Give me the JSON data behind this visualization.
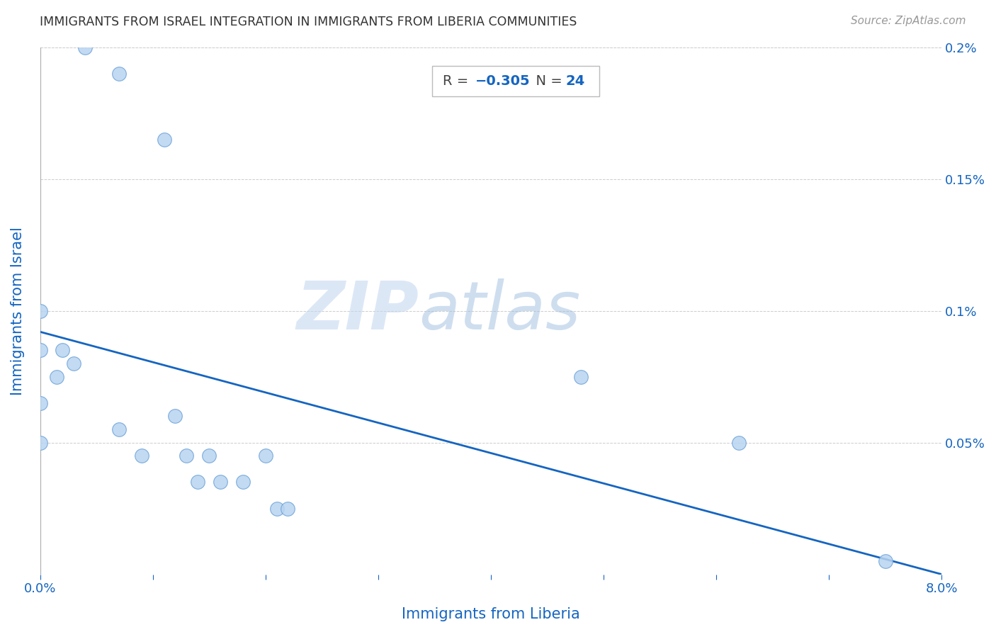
{
  "title": "IMMIGRANTS FROM ISRAEL INTEGRATION IN IMMIGRANTS FROM LIBERIA COMMUNITIES",
  "source": "Source: ZipAtlas.com",
  "xlabel": "Immigrants from Liberia",
  "ylabel": "Immigrants from Israel",
  "R": -0.305,
  "N": 24,
  "xlim": [
    0.0,
    0.08
  ],
  "ylim": [
    0.0,
    0.002
  ],
  "xticks": [
    0.0,
    0.01,
    0.02,
    0.03,
    0.04,
    0.05,
    0.06,
    0.07,
    0.08
  ],
  "xticklabels": [
    "0.0%",
    "",
    "",
    "",
    "",
    "",
    "",
    "",
    "8.0%"
  ],
  "yticks": [
    0.0,
    0.0005,
    0.001,
    0.0015,
    0.002
  ],
  "ylabels_right": [
    "",
    "0.05%",
    "0.1%",
    "0.15%",
    "0.2%"
  ],
  "scatter_color": "#b8d4f0",
  "scatter_edge_color": "#6aa0d8",
  "line_color": "#1565c0",
  "watermark_zip": "ZIP",
  "watermark_atlas": "atlas",
  "scatter_x": [
    0.004,
    0.007,
    0.011,
    0.0,
    0.002,
    0.003,
    0.0015,
    0.0,
    0.0,
    0.0,
    0.007,
    0.009,
    0.012,
    0.013,
    0.014,
    0.015,
    0.016,
    0.018,
    0.02,
    0.021,
    0.022,
    0.048,
    0.062,
    0.075
  ],
  "scatter_y": [
    0.002,
    0.0019,
    0.00165,
    0.001,
    0.00085,
    0.0008,
    0.00075,
    0.00065,
    0.0005,
    0.00085,
    0.00055,
    0.00045,
    0.0006,
    0.00045,
    0.00035,
    0.00045,
    0.00035,
    0.00035,
    0.00045,
    0.00025,
    0.00025,
    0.00075,
    0.0005,
    5e-05
  ],
  "annotation_box_color": "#ffffff",
  "annotation_border_color": "#bbbbbb",
  "R_label_color": "#444444",
  "R_value_color": "#1565c0",
  "N_label_color": "#444444",
  "N_value_color": "#1565c0",
  "label_color": "#1565c0",
  "tick_color": "#1565c0",
  "title_color": "#333333",
  "line_start_y": 0.00092,
  "line_end_y": -5e-05
}
